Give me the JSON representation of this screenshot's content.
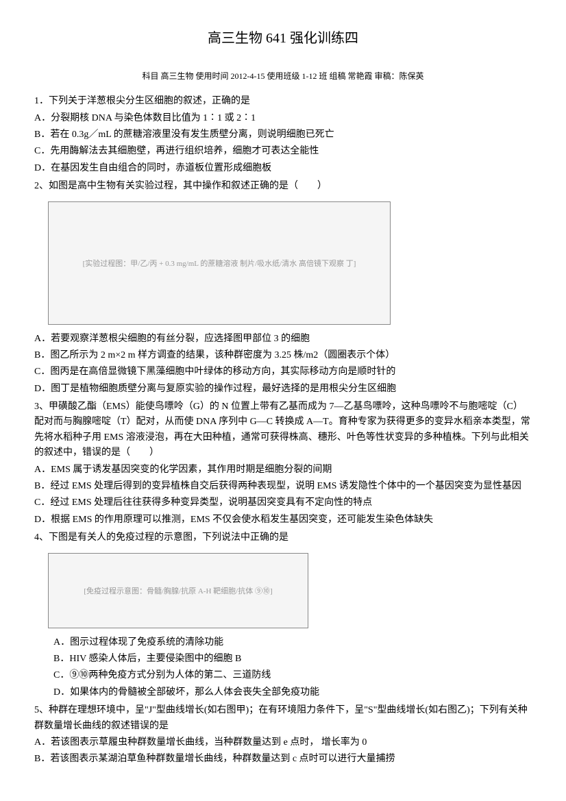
{
  "title": "高三生物 641 强化训练四",
  "sub_header": "科目 高三生物 使用时间 2012-4-15  使用班级 1-12 班 组稿 常艳霞  审稿：陈保英",
  "q1": {
    "text": "1．下列关于洋葱根尖分生区细胞的叙述，正确的是",
    "optA": "A．分裂期核 DNA 与染色体数目比值为 1∶1 或 2∶1",
    "optB": "B．若在 0.3g／mL 的蔗糖溶液里没有发生质壁分离，则说明细胞已死亡",
    "optC": "C．先用酶解法去其细胞壁，再进行组织培养，细胞才可表达全能性",
    "optD": "D．在基因发生自由组合的同时，赤道板位置形成细胞板"
  },
  "q2": {
    "text": "2、如图是高中生物有关实验过程，其中操作和叙述正确的是（　　）",
    "diagram_label": "[实验过程图：甲/乙/丙 + 0.3 mg/mL 的蔗糖溶液 制片/吸水纸/清水 高倍镜下观察 丁]",
    "optA": "A．若要观察洋葱根尖细胞的有丝分裂，应选择图甲部位 3 的细胞",
    "optB": "B．图乙所示为 2 m×2 m 样方调查的结果，该种群密度为 3.25 株/m2（圆圈表示个体）",
    "optC": "C．图丙是在高倍显微镜下黑藻细胞中叶绿体的移动方向，其实际移动方向是顺时针的",
    "optD": "D．图丁是植物细胞质壁分离与复原实验的操作过程，最好选择的是用根尖分生区细胞"
  },
  "q3": {
    "text": "3、甲磺酸乙酯（EMS）能使鸟嘌呤（G）的 N 位置上带有乙基而成为 7—乙基鸟嘌呤，这种鸟嘌呤不与胞嘧啶（C）配对而与胸腺嘧啶（T）配对，从而使 DNA 序列中 G—C 转换成 A—T。育种专家为获得更多的变异水稻亲本类型，常先将水稻种子用 EMS 溶液浸泡，再在大田种植，通常可获得株高、穗形、叶色等性状变异的多种植株。下列与此相关的叙述中，错误的是（　　）",
    "optA": "A．EMS 属于诱发基因突变的化学因素，其作用时期是细胞分裂的间期",
    "optB": "B．经过 EMS 处理后得到的变异植株自交后获得两种表现型，说明 EMS 诱发隐性个体中的一个基因突变为显性基因",
    "optC": "C．经过 EMS 处理后往往获得多种变异类型，说明基因突变具有不定向性的特点",
    "optD": "D．根据 EMS 的作用原理可以推测，EMS 不仅会使水稻发生基因突变，还可能发生染色体缺失"
  },
  "q4": {
    "text": "4、下图是有关人的免疫过程的示意图，下列说法中正确的是",
    "diagram_label": "[免疫过程示意图：骨髓/胸腺/抗原 A-H 靶细胞/抗体 ⑨⑩]",
    "optA": "A．图示过程体现了免疫系统的清除功能",
    "optB": "B．HIV 感染人体后，主要侵染图中的细胞 B",
    "optC": "C．⑨⑩两种免疫方式分别为人体的第二、三道防线",
    "optD": "D．如果体内的骨髓被全部破坏，那么人体会丧失全部免疫功能"
  },
  "q5": {
    "text": "5、种群在理想环境中，呈\"J\"型曲线增长(如右图甲)；在有环境阻力条件下，呈\"S\"型曲线增长(如右图乙)；下列有关种群数量增长曲线的叙述错误的是",
    "optA": "A．若该图表示草履虫种群数量增长曲线，当种群数量达到 e 点时， 增长率为 0",
    "optB": "B．若该图表示某湖泊草鱼种群数量增长曲线，种群数量达到 c 点时可以进行大量捕捞"
  }
}
